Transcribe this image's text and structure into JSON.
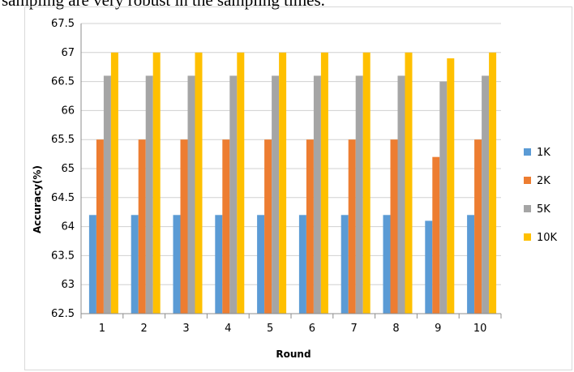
{
  "caption": "sampling are very robust in the sampling times.",
  "chart_data": {
    "type": "bar",
    "xlabel": "Round",
    "ylabel": "Accuracy(%)",
    "ylim": [
      62.5,
      67.5
    ],
    "ytick_step": 0.5,
    "yticks": [
      "62.5",
      "63",
      "63.5",
      "64",
      "64.5",
      "65",
      "65.5",
      "66",
      "66.5",
      "67",
      "67.5"
    ],
    "categories": [
      "1",
      "2",
      "3",
      "4",
      "5",
      "6",
      "7",
      "8",
      "9",
      "10"
    ],
    "grid": true,
    "legend_position": "right",
    "series": [
      {
        "name": "1K",
        "color": "#5b9bd5",
        "values": [
          64.2,
          64.2,
          64.2,
          64.2,
          64.2,
          64.2,
          64.2,
          64.2,
          64.1,
          64.2
        ]
      },
      {
        "name": "2K",
        "color": "#ed7d31",
        "values": [
          65.5,
          65.5,
          65.5,
          65.5,
          65.5,
          65.5,
          65.5,
          65.5,
          65.2,
          65.5
        ]
      },
      {
        "name": "5K",
        "color": "#a5a5a5",
        "values": [
          66.6,
          66.6,
          66.6,
          66.6,
          66.6,
          66.6,
          66.6,
          66.6,
          66.5,
          66.6
        ]
      },
      {
        "name": "10K",
        "color": "#ffc000",
        "values": [
          67.0,
          67.0,
          67.0,
          67.0,
          67.0,
          67.0,
          67.0,
          67.0,
          66.9,
          67.0
        ]
      }
    ]
  }
}
